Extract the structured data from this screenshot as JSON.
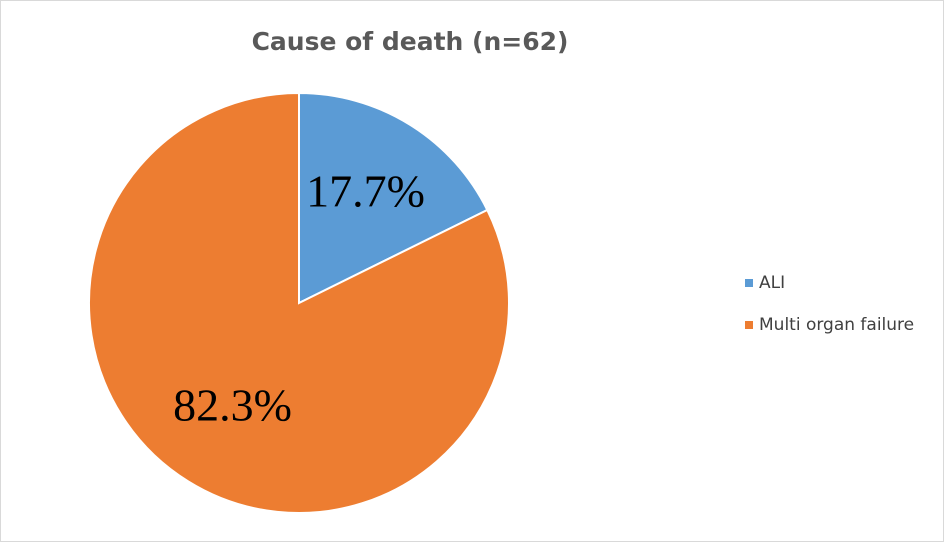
{
  "chart_data": {
    "type": "pie",
    "title": "Cause of death (n=62)",
    "categories": [
      "ALI",
      "Multi organ failure"
    ],
    "values": [
      17.7,
      82.3
    ],
    "value_labels": [
      "17.7%",
      "82.3%"
    ],
    "colors": [
      "#5b9bd5",
      "#ed7d31"
    ],
    "legend": "right"
  }
}
